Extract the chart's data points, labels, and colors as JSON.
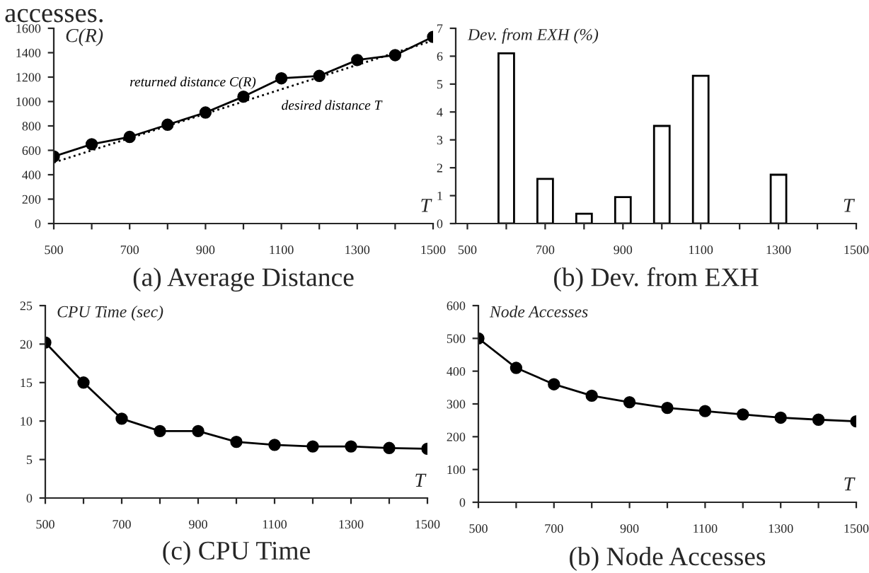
{
  "chart_data": [
    {
      "type": "line",
      "title": "(a) Average Distance",
      "xlabel": "T",
      "ylabel": "C(R)",
      "annotations": [
        "accesses."
      ],
      "xlim": [
        500,
        1500
      ],
      "ylim": [
        0,
        1600
      ],
      "xticks": [
        500,
        {
          "value": 600,
          "label": null
        },
        700,
        {
          "value": 800,
          "label": null
        },
        900,
        {
          "value": 1000,
          "label": null
        },
        1100,
        {
          "value": 1200,
          "label": null
        },
        1300,
        {
          "value": 1400,
          "label": null
        },
        1500
      ],
      "yticks": [
        0,
        200,
        400,
        600,
        800,
        1000,
        1200,
        1400,
        1600
      ],
      "grid": false,
      "legend": false,
      "x": [
        500,
        600,
        700,
        800,
        900,
        1000,
        1100,
        1200,
        1300,
        1400,
        1500
      ],
      "series": [
        {
          "name": "returned distance C(R)",
          "color": "#000000",
          "marker": "circle",
          "line_style": "solid",
          "values": [
            550,
            650,
            710,
            810,
            910,
            1040,
            1190,
            1210,
            1340,
            1380,
            1530
          ]
        },
        {
          "name": "desired distance T",
          "color": "#000000",
          "marker": "none",
          "line_style": "dotted",
          "values": [
            500,
            600,
            700,
            800,
            900,
            1000,
            1100,
            1200,
            1300,
            1400,
            1500
          ]
        }
      ]
    },
    {
      "type": "bar",
      "title": "(b) Dev. from EXH",
      "xlabel": "T",
      "ylabel": "Dev. from EXH (%)",
      "xlim": [
        470,
        1500
      ],
      "ylim": [
        0,
        7
      ],
      "xticks": [
        500,
        {
          "value": 600,
          "label": null
        },
        700,
        {
          "value": 800,
          "label": null
        },
        900,
        {
          "value": 1000,
          "label": null
        },
        1100,
        {
          "value": 1200,
          "label": null
        },
        1300,
        {
          "value": 1400,
          "label": null
        },
        1500
      ],
      "yticks": [
        0,
        1,
        2,
        3,
        4,
        5,
        6,
        7
      ],
      "grid": false,
      "legend": false,
      "x": [
        600,
        700,
        800,
        900,
        1000,
        1100,
        1300
      ],
      "series": [
        {
          "color": "#ffffff",
          "values": [
            6.1,
            1.6,
            0.35,
            0.95,
            3.5,
            5.3,
            1.75
          ]
        }
      ]
    },
    {
      "type": "line",
      "title": "(c) CPU Time",
      "xlabel": "T",
      "ylabel": "CPU Time (sec)",
      "xlim": [
        500,
        1500
      ],
      "ylim": [
        0,
        25
      ],
      "xticks": [
        500,
        {
          "value": 600,
          "label": null
        },
        700,
        {
          "value": 800,
          "label": null
        },
        900,
        {
          "value": 1000,
          "label": null
        },
        1100,
        {
          "value": 1200,
          "label": null
        },
        1300,
        {
          "value": 1400,
          "label": null
        },
        1500
      ],
      "yticks": [
        0,
        5,
        10,
        15,
        20,
        25
      ],
      "grid": false,
      "legend": false,
      "marker": "circle",
      "line_style": "solid",
      "x": [
        500,
        600,
        700,
        800,
        900,
        1000,
        1100,
        1200,
        1300,
        1400,
        1500
      ],
      "series": [
        {
          "color": "#000000",
          "values": [
            20.2,
            15,
            10.3,
            8.7,
            8.7,
            7.3,
            6.9,
            6.7,
            6.7,
            6.5,
            6.4
          ]
        }
      ]
    },
    {
      "type": "line",
      "title": "(b) Node Accesses",
      "xlabel": "T",
      "ylabel": "Node Accesses",
      "xlim": [
        500,
        1500
      ],
      "ylim": [
        0,
        600
      ],
      "xticks": [
        500,
        {
          "value": 600,
          "label": null
        },
        700,
        {
          "value": 800,
          "label": null
        },
        900,
        {
          "value": 1000,
          "label": null
        },
        1100,
        {
          "value": 1200,
          "label": null
        },
        1300,
        {
          "value": 1400,
          "label": null
        },
        1500
      ],
      "yticks": [
        0,
        100,
        200,
        300,
        400,
        500,
        600
      ],
      "grid": false,
      "legend": false,
      "marker": "circle",
      "line_style": "solid",
      "x": [
        500,
        600,
        700,
        800,
        900,
        1000,
        1100,
        1200,
        1300,
        1400,
        1500
      ],
      "series": [
        {
          "color": "#000000",
          "values": [
            500,
            410,
            360,
            325,
            305,
            288,
            278,
            268,
            258,
            252,
            247
          ]
        }
      ]
    }
  ]
}
